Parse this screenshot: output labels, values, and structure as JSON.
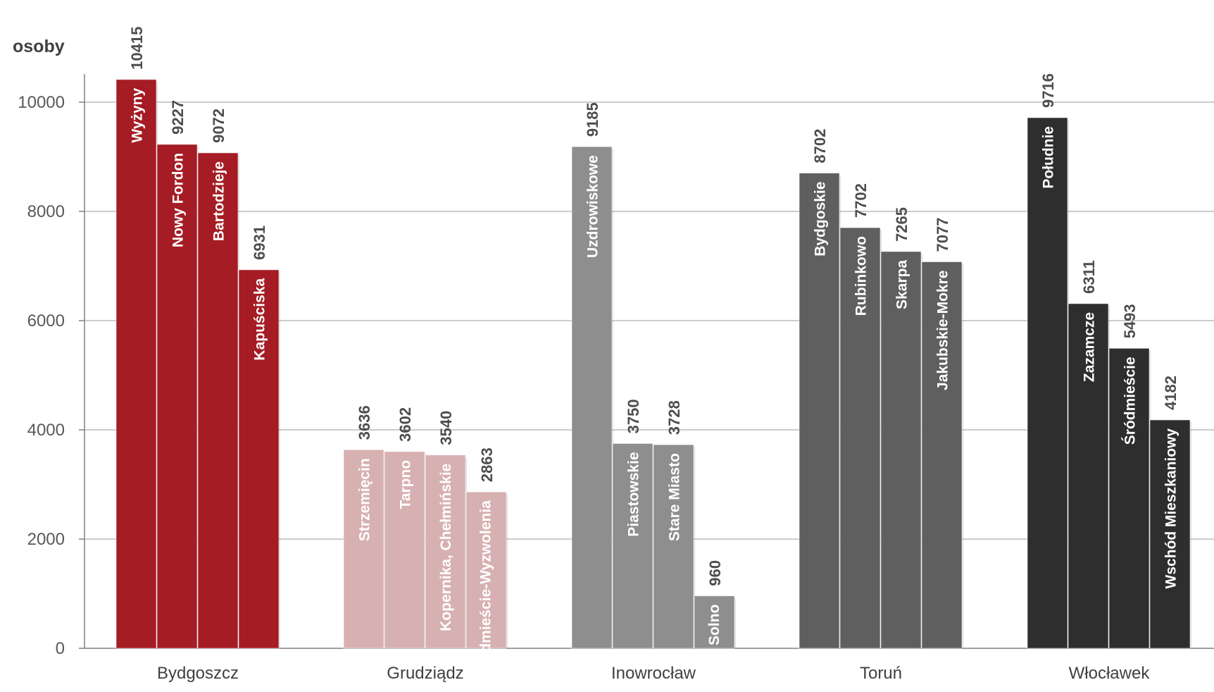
{
  "chart_data": {
    "type": "bar",
    "ylabel": "osoby",
    "ylim": [
      0,
      10800
    ],
    "yticks": [
      0,
      2000,
      4000,
      6000,
      8000,
      10000
    ],
    "grid": true,
    "groups": [
      {
        "name": "Bydgoszcz",
        "color": "#a51c24",
        "label_color": "#ffffff",
        "bars": [
          {
            "label": "Wyżyny",
            "value": 10415
          },
          {
            "label": "Nowy Fordon",
            "value": 9227
          },
          {
            "label": "Bartodzieje",
            "value": 9072
          },
          {
            "label": "Kapuściska",
            "value": 6931
          }
        ]
      },
      {
        "name": "Grudziądz",
        "color": "#d7b0b1",
        "label_color": "#ffffff",
        "bars": [
          {
            "label": "Strzemięcin",
            "value": 3636
          },
          {
            "label": "Tarpno",
            "value": 3602
          },
          {
            "label": "Kopernika, Chełmińskie",
            "value": 3540
          },
          {
            "label": "Śródmieście-Wyzwolenia",
            "value": 2863
          }
        ]
      },
      {
        "name": "Inowrocław",
        "color": "#8e8e8e",
        "label_color": "#ffffff",
        "bars": [
          {
            "label": "Uzdrowiskowe",
            "value": 9185
          },
          {
            "label": "Piastowskie",
            "value": 3750
          },
          {
            "label": "Stare Miasto",
            "value": 3728
          },
          {
            "label": "Solno",
            "value": 960
          }
        ]
      },
      {
        "name": "Toruń",
        "color": "#5f5f5f",
        "label_color": "#ffffff",
        "bars": [
          {
            "label": "Bydgoskie",
            "value": 8702
          },
          {
            "label": "Rubinkowo",
            "value": 7702
          },
          {
            "label": "Skarpa",
            "value": 7265
          },
          {
            "label": "Jakubskie-Mokre",
            "value": 7077
          }
        ]
      },
      {
        "name": "Włocławek",
        "color": "#2e2e2e",
        "label_color": "#ffffff",
        "bars": [
          {
            "label": "Południe",
            "value": 9716
          },
          {
            "label": "Zazamcze",
            "value": 6311
          },
          {
            "label": "Śródmieście",
            "value": 5493
          },
          {
            "label": "Wschód Mieszkaniowy",
            "value": 4182
          }
        ]
      }
    ]
  }
}
